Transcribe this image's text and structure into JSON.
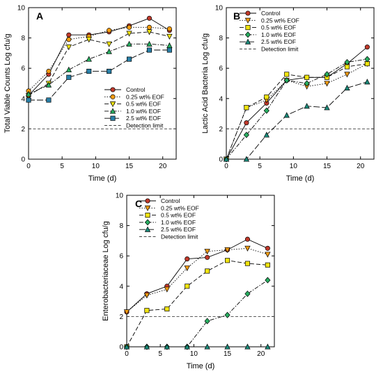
{
  "chart_data": [
    {
      "type": "line",
      "panel_label": "A",
      "xlabel": "Time (d)",
      "ylabel": "Total Viable Counts Log cfu/g",
      "xlim": [
        0,
        22
      ],
      "ylim": [
        0,
        10
      ],
      "xticks": [
        "0",
        "5",
        "10",
        "15",
        "20"
      ],
      "yticks": [
        "0",
        "2",
        "4",
        "6",
        "8",
        "10"
      ],
      "legend": "bottom-right",
      "x": [
        0,
        3,
        6,
        9,
        12,
        15,
        18,
        21
      ],
      "series": [
        {
          "name": "Control",
          "values": [
            4.2,
            5.6,
            8.2,
            8.2,
            8.4,
            8.8,
            9.3,
            8.5
          ],
          "color": "#c0392b",
          "marker": "circle",
          "dash": ""
        },
        {
          "name": "0.25 wt% EOF",
          "values": [
            4.5,
            5.8,
            7.9,
            8.1,
            8.5,
            8.7,
            8.7,
            8.6
          ],
          "color": "#f39c12",
          "marker": "circle",
          "dash": "1.5,2"
        },
        {
          "name": "0.5 wt% EOF",
          "values": [
            4.2,
            5.0,
            7.4,
            7.9,
            7.6,
            8.3,
            8.4,
            8.1
          ],
          "color": "#f1e40f",
          "marker": "tri-down",
          "dash": "6,3"
        },
        {
          "name": "1.0 wt% EOF",
          "values": [
            4.3,
            4.9,
            5.9,
            6.6,
            7.1,
            7.6,
            7.6,
            7.5
          ],
          "color": "#27ae60",
          "marker": "tri-up",
          "dash": "6,2,1.5,2"
        },
        {
          "name": "2.5 wt% EOF",
          "values": [
            3.9,
            3.9,
            5.4,
            5.8,
            5.8,
            6.6,
            7.2,
            7.2
          ],
          "color": "#2980a8",
          "marker": "square",
          "dash": "9,3"
        }
      ],
      "detection_limit": {
        "name": "Detection limit",
        "value": 2
      }
    },
    {
      "type": "line",
      "panel_label": "B",
      "xlabel": "Time (d)",
      "ylabel": "Lactic Acid Bacteria Log cfu/g",
      "xlim": [
        0,
        22
      ],
      "ylim": [
        0,
        10
      ],
      "xticks": [
        "0",
        "5",
        "10",
        "15",
        "20"
      ],
      "yticks": [
        "0",
        "2",
        "4",
        "6",
        "8",
        "10"
      ],
      "legend": "top-left",
      "x": [
        0,
        3,
        6,
        9,
        12,
        15,
        18,
        21
      ],
      "series": [
        {
          "name": "Control",
          "values": [
            0,
            2.4,
            3.7,
            5.2,
            5.4,
            5.4,
            6.3,
            7.4
          ],
          "color": "#c0392b",
          "marker": "circle",
          "dash": ""
        },
        {
          "name": "0.25 wt% EOF",
          "values": [
            0,
            3.4,
            3.9,
            5.2,
            4.8,
            5.0,
            5.6,
            6.3
          ],
          "color": "#f39c12",
          "marker": "tri-down",
          "dash": "1.5,2"
        },
        {
          "name": "0.5 wt% EOF",
          "values": [
            0,
            3.4,
            4.1,
            5.6,
            5.4,
            5.4,
            6.1,
            6.3
          ],
          "color": "#f1e40f",
          "marker": "square",
          "dash": "6,3"
        },
        {
          "name": "1.0 wt% EOF",
          "values": [
            0,
            1.6,
            3.2,
            5.2,
            5.0,
            5.6,
            6.4,
            6.6
          ],
          "color": "#27ae60",
          "marker": "diamond",
          "dash": "6,2,1.5,2"
        },
        {
          "name": "2.5 wt% EOF",
          "values": [
            0,
            0.0,
            1.6,
            2.9,
            3.5,
            3.4,
            4.7,
            5.1
          ],
          "color": "#1a8a7a",
          "marker": "tri-up",
          "dash": "9,3"
        }
      ],
      "detection_limit": {
        "name": "Detection limit",
        "value": 2
      }
    },
    {
      "type": "line",
      "panel_label": "C",
      "xlabel": "Time (d)",
      "ylabel": "Enterobacteriaceae Log cfu/g",
      "xlim": [
        0,
        22
      ],
      "ylim": [
        0,
        10
      ],
      "xticks": [
        "0",
        "5",
        "10",
        "15",
        "20"
      ],
      "yticks": [
        "0",
        "2",
        "4",
        "6",
        "8",
        "10"
      ],
      "legend": "top-left",
      "x": [
        0,
        3,
        6,
        9,
        12,
        15,
        18,
        21
      ],
      "series": [
        {
          "name": "Control",
          "values": [
            2.3,
            3.5,
            4.0,
            5.8,
            5.9,
            6.4,
            7.1,
            6.5
          ],
          "color": "#c0392b",
          "marker": "circle",
          "dash": ""
        },
        {
          "name": "0.25 wt% EOF",
          "values": [
            2.3,
            3.4,
            3.8,
            5.2,
            6.3,
            6.4,
            6.5,
            6.1
          ],
          "color": "#f39c12",
          "marker": "tri-down",
          "dash": "1.5,2"
        },
        {
          "name": "0.5 wt% EOF",
          "values": [
            0,
            2.4,
            2.5,
            4.0,
            5.0,
            5.7,
            5.5,
            5.4
          ],
          "color": "#f1e40f",
          "marker": "square",
          "dash": "6,3"
        },
        {
          "name": "1.0 wt% EOF",
          "values": [
            0,
            0,
            0,
            0,
            1.7,
            2.1,
            3.5,
            4.4
          ],
          "color": "#27ae60",
          "marker": "diamond",
          "dash": "6,2,1.5,2"
        },
        {
          "name": "2.5 wt% EOF",
          "values": [
            0,
            0,
            0,
            0,
            0,
            0,
            0,
            0
          ],
          "color": "#1a8a7a",
          "marker": "tri-up",
          "dash": "9,3"
        }
      ],
      "detection_limit": {
        "name": "Detection limit",
        "value": 2
      }
    }
  ]
}
